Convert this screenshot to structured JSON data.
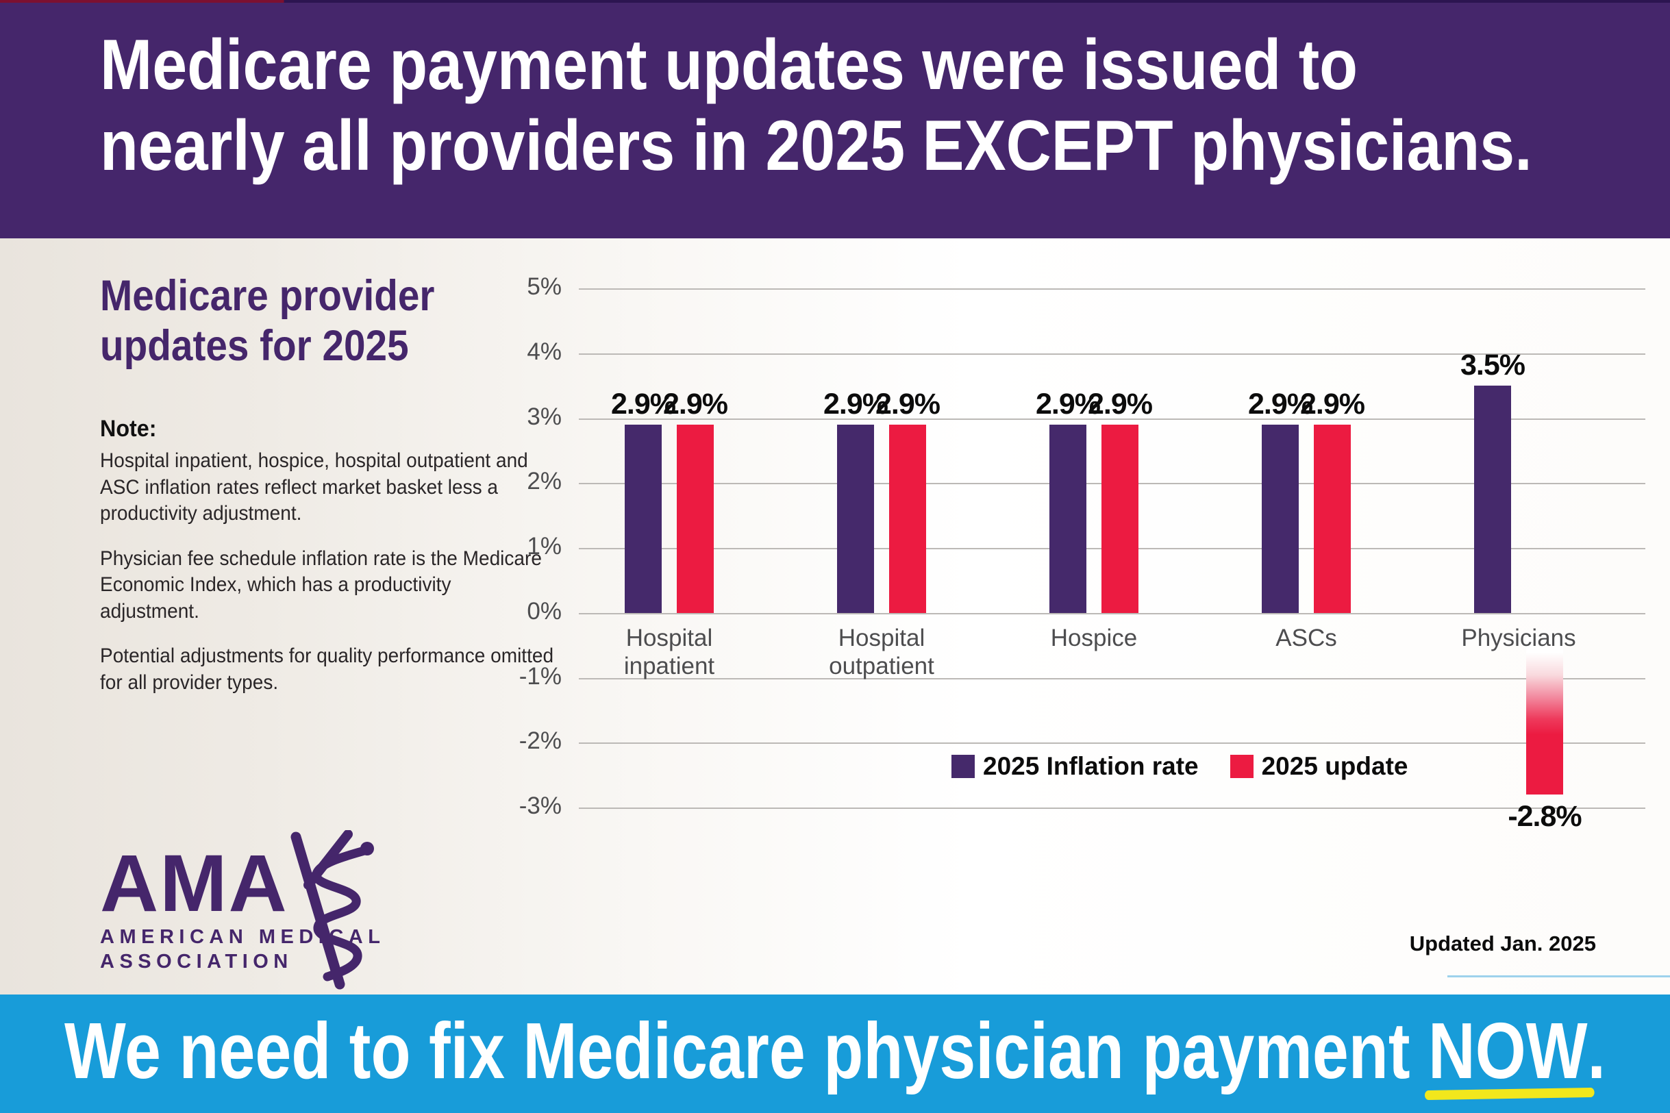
{
  "header": {
    "line1": "Medicare payment updates were issued to",
    "line2": "nearly all providers in 2025 EXCEPT physicians.",
    "bg_color": "#45266B",
    "text_color": "#FFFFFF"
  },
  "left": {
    "heading_line1": "Medicare provider",
    "heading_line2": "updates for 2025",
    "heading_color": "#45266B",
    "note_label": "Note:",
    "note_paragraphs": [
      "Hospital inpatient, hospice, hospital outpatient and ASC inflation rates reflect market basket less a productivity adjustment.",
      "Physician fee schedule inflation rate is the Medicare Economic Index, which has a productivity adjustment.",
      "Potential adjustments for quality performance omitted for all provider types."
    ]
  },
  "chart_data": {
    "type": "bar",
    "title": "Medicare provider updates for 2025",
    "categories": [
      "Hospital\ninpatient",
      "Hospital\noutpatient",
      "Hospice",
      "ASCs",
      "Physicians"
    ],
    "series": [
      {
        "name": "2025 Inflation rate",
        "color": "#45296B",
        "values": [
          2.9,
          2.9,
          2.9,
          2.9,
          3.5
        ]
      },
      {
        "name": "2025 update",
        "color": "#EC1B41",
        "values": [
          2.9,
          2.9,
          2.9,
          2.9,
          -2.8
        ]
      }
    ],
    "xlabel": "",
    "ylabel": "",
    "ylim": [
      -3,
      5
    ],
    "ytick_step": 1,
    "ytick_suffix": "%",
    "grid": true,
    "gridline_color": "#bcb9b6",
    "legend_position": "bottom-right",
    "negative_bar_gradient": [
      "#FFFFFF",
      "#EC1B41"
    ]
  },
  "updated": {
    "text": "Updated Jan. 2025",
    "rule_color": "#9ED2EC"
  },
  "logo": {
    "acronym": "AMA",
    "line1": "AMERICAN MEDICAL",
    "line2": "ASSOCIATION",
    "color": "#45266B"
  },
  "footer": {
    "prefix": "We need to fix Medicare physician payment ",
    "highlight": "NOW",
    "suffix": ".",
    "bg_color": "#189CD9",
    "underline_color": "#F2E71C"
  }
}
